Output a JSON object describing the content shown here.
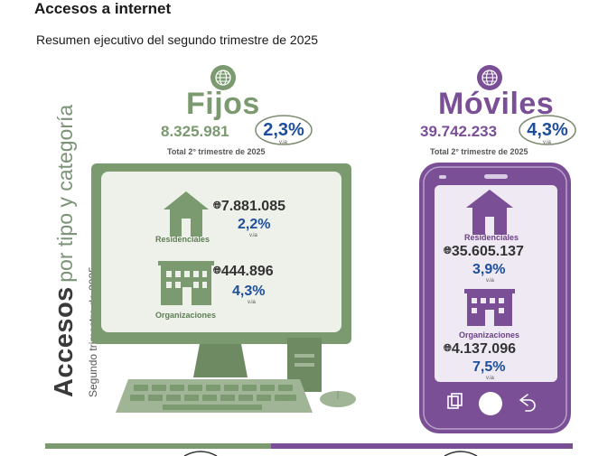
{
  "title": "Accesos a internet",
  "subtitle": "Resumen ejecutivo del segundo trimestre de 2025",
  "side_label": {
    "main": "Accesos",
    "rest": "por tipo y categoría",
    "sub": "Segundo trimestre de 2025"
  },
  "fijos": {
    "name": "Fijos",
    "total": "8.325.981",
    "variation": "2,3%",
    "via": "v.ia",
    "total_label": "Total 2° trimestre de 2025",
    "residenciales": {
      "label": "Residenciales",
      "value": "7.881.085",
      "variation": "2,2%",
      "via": "v.ia"
    },
    "organizaciones": {
      "label": "Organizaciones",
      "value": "444.896",
      "variation": "4,3%",
      "via": "v.ia"
    }
  },
  "moviles": {
    "name": "Móviles",
    "total": "39.742.233",
    "variation": "4,3%",
    "via": "v.ia",
    "total_label": "Total 2° trimestre de 2025",
    "residenciales": {
      "label": "Residenciales",
      "value": "35.605.137",
      "variation": "3,9%",
      "via": "v.ia"
    },
    "organizaciones": {
      "label": "Organizaciones",
      "value": "4.137.096",
      "variation": "7,5%",
      "via": "v.ia"
    }
  },
  "colors": {
    "green": "#7b9a70",
    "purple": "#7a4f96",
    "blue": "#1f4e9a"
  },
  "icons": [
    "globe-icon",
    "house-icon",
    "building-icon",
    "desktop-computer-illustration",
    "smartphone-illustration"
  ]
}
